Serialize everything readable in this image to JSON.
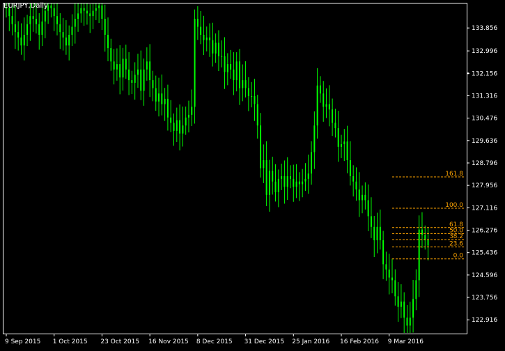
{
  "window": {
    "symbol_label": "EURJPY,Daily"
  },
  "colors": {
    "background": "#000000",
    "frame": "#ffffff",
    "candle": "#00ff00",
    "fib": "#ffa500",
    "text": "#ffffff"
  },
  "chart_data": {
    "type": "candlestick",
    "y_axis": {
      "min": 122.4,
      "max": 134.8,
      "ticks": [
        "133.856",
        "132.996",
        "132.156",
        "131.316",
        "130.476",
        "129.636",
        "128.796",
        "127.956",
        "127.116",
        "126.276",
        "125.436",
        "124.596",
        "123.756",
        "122.916"
      ]
    },
    "price_marker": 132.156,
    "x_axis": {
      "labels": [
        "9 Sep 2015",
        "1 Oct 2015",
        "23 Oct 2015",
        "16 Nov 2015",
        "8 Dec 2015",
        "31 Dec 2015",
        "25 Jan 2016",
        "16 Feb 2016",
        "9 Mar 2016"
      ],
      "label_bar_index": [
        0,
        16,
        32,
        48,
        64,
        80,
        96,
        112,
        128
      ]
    },
    "bar_count": 140,
    "closes": [
      134.6,
      134.3,
      134.0,
      133.7,
      133.5,
      133.2,
      133.6,
      134.0,
      134.3,
      134.2,
      134.0,
      133.6,
      134.1,
      134.5,
      134.7,
      134.6,
      134.3,
      134.0,
      133.7,
      133.5,
      133.2,
      133.6,
      133.9,
      134.2,
      134.4,
      134.6,
      134.5,
      134.4,
      134.3,
      134.5,
      134.6,
      134.7,
      134.2,
      133.6,
      133.1,
      132.6,
      132.3,
      132.5,
      132.0,
      132.7,
      132.3,
      131.9,
      131.8,
      132.1,
      132.3,
      131.5,
      132.3,
      132.6,
      131.9,
      131.6,
      131.1,
      131.4,
      131.0,
      131.2,
      130.5,
      130.3,
      130.0,
      130.4,
      129.9,
      130.2,
      130.5,
      130.6,
      130.9,
      134.2,
      133.9,
      133.6,
      133.4,
      133.5,
      133.4,
      132.9,
      133.3,
      132.8,
      132.8,
      132.2,
      132.5,
      132.3,
      131.9,
      132.6,
      131.6,
      131.9,
      131.6,
      131.3,
      131.3,
      131.0,
      130.2,
      128.6,
      128.9,
      127.6,
      128.5,
      128.1,
      127.7,
      128.2,
      128.3,
      127.9,
      128.3,
      128.2,
      127.9,
      128.1,
      128.0,
      128.1,
      128.2,
      128.4,
      129.2,
      130.2,
      131.7,
      131.4,
      130.9,
      131.0,
      130.8,
      130.3,
      130.1,
      129.4,
      129.5,
      129.6,
      128.9,
      128.3,
      128.1,
      127.8,
      127.4,
      127.6,
      127.4,
      126.8,
      126.4,
      125.9,
      126.4,
      125.9,
      125.0,
      124.8,
      124.5,
      124.4,
      123.8,
      123.4,
      123.6,
      123.0,
      122.7,
      123.0,
      123.7,
      124.4,
      126.3,
      126.1,
      125.9,
      125.7
    ],
    "fibonacci": {
      "levels": [
        {
          "label": "161.8",
          "ratio": 1.618
        },
        {
          "label": "100.0",
          "ratio": 1.0
        },
        {
          "label": "61.8",
          "ratio": 0.618
        },
        {
          "label": "50.0",
          "ratio": 0.5
        },
        {
          "label": "38.2",
          "ratio": 0.382
        },
        {
          "label": "23.6",
          "ratio": 0.236
        },
        {
          "label": "0.0",
          "ratio": 0.0
        }
      ],
      "high": 127.1,
      "low": 125.2,
      "start_bar": 129
    }
  }
}
